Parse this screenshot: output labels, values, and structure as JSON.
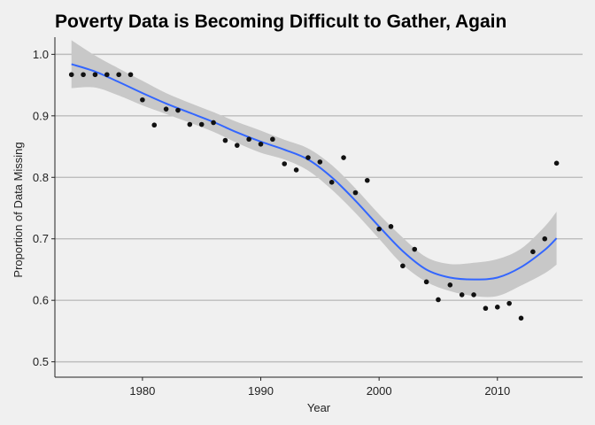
{
  "chart_data": {
    "type": "scatter",
    "title": "Poverty Data is Becoming Difficult to Gather, Again",
    "xlabel": "Year",
    "ylabel": "Proportion of Data Missing",
    "xlim": [
      1972.6,
      2017.2
    ],
    "ylim": [
      0.475,
      1.025
    ],
    "x_ticks": [
      1980,
      1990,
      2000,
      2010
    ],
    "x_tick_labels": [
      "1980",
      "1990",
      "2000",
      "2010"
    ],
    "y_ticks": [
      0.5,
      0.6,
      0.7,
      0.8,
      0.9,
      1.0
    ],
    "y_tick_labels": [
      "0.5",
      "0.6",
      "0.7",
      "0.8",
      "0.9",
      "1.0"
    ],
    "grid": "horizontal major",
    "legend": "none",
    "colors": {
      "points": "#111111",
      "smooth": "#3366ff",
      "band": "#c8c8c8",
      "grid": "#bdbdbd",
      "background": "#f0f0f0"
    },
    "series": [
      {
        "type": "points",
        "x": [
          1974,
          1975,
          1976,
          1977,
          1978,
          1979,
          1980,
          1981,
          1982,
          1983,
          1984,
          1985,
          1986,
          1987,
          1988,
          1989,
          1990,
          1991,
          1992,
          1993,
          1994,
          1995,
          1996,
          1997,
          1998,
          1999,
          2000,
          2001,
          2002,
          2003,
          2004,
          2005,
          2006,
          2007,
          2008,
          2009,
          2010,
          2011,
          2012,
          2013,
          2014,
          2015
        ],
        "y": [
          0.967,
          0.967,
          0.967,
          0.967,
          0.967,
          0.967,
          0.926,
          0.885,
          0.911,
          0.909,
          0.886,
          0.886,
          0.889,
          0.86,
          0.852,
          0.862,
          0.854,
          0.862,
          0.822,
          0.812,
          0.832,
          0.825,
          0.792,
          0.832,
          0.775,
          0.795,
          0.716,
          0.72,
          0.656,
          0.683,
          0.63,
          0.601,
          0.625,
          0.609,
          0.609,
          0.587,
          0.589,
          0.595,
          0.571,
          0.679,
          0.7,
          0.823
        ]
      },
      {
        "type": "smooth",
        "x": [
          1974,
          1976,
          1978,
          1980,
          1982,
          1984,
          1986,
          1988,
          1990,
          1992,
          1994,
          1996,
          1998,
          2000,
          2002,
          2004,
          2006,
          2008,
          2010,
          2012,
          2014,
          2015
        ],
        "y": [
          0.984,
          0.972,
          0.955,
          0.937,
          0.92,
          0.905,
          0.89,
          0.873,
          0.858,
          0.845,
          0.829,
          0.8,
          0.762,
          0.72,
          0.68,
          0.65,
          0.637,
          0.634,
          0.637,
          0.654,
          0.682,
          0.701
        ],
        "band_lower": [
          0.945,
          0.946,
          0.933,
          0.917,
          0.903,
          0.889,
          0.874,
          0.856,
          0.84,
          0.829,
          0.811,
          0.78,
          0.742,
          0.7,
          0.658,
          0.63,
          0.615,
          0.607,
          0.607,
          0.624,
          0.644,
          0.658
        ],
        "band_upper": [
          1.023,
          0.998,
          0.977,
          0.957,
          0.937,
          0.921,
          0.906,
          0.89,
          0.876,
          0.861,
          0.847,
          0.82,
          0.782,
          0.74,
          0.702,
          0.67,
          0.659,
          0.661,
          0.667,
          0.684,
          0.72,
          0.744
        ]
      }
    ]
  }
}
